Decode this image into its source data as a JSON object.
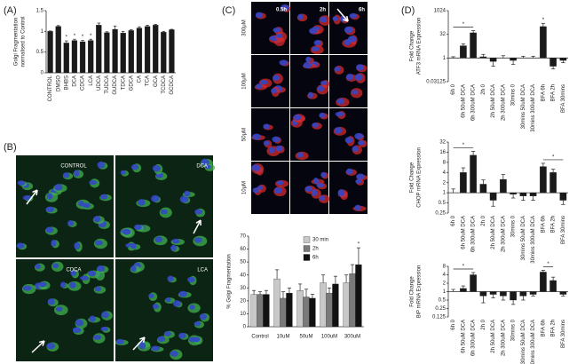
{
  "panel_labels": [
    "(A)",
    "(B)",
    "(C)",
    "(D)"
  ],
  "micrographs_b": {
    "labels": [
      "CONTROL",
      "DCA",
      "CDCA",
      "LCA"
    ]
  },
  "micrographs_c": {
    "columns": [
      "0.5h",
      "2h",
      "6h"
    ],
    "rows": [
      "300μM",
      "100μM",
      "50μM",
      "10μM"
    ]
  },
  "chart_data": [
    {
      "type": "bar",
      "y_label": [
        "Golgi Fragmentation",
        "normalised to Control"
      ],
      "categories": [
        "CONTROL",
        "DMSO",
        "BHBS",
        "DCA",
        "CDCA",
        "LCA",
        "UDCA",
        "TUDCA",
        "GUDCA",
        "TDCA",
        "GDCA",
        "CA",
        "TCA",
        "GCA",
        "TCDCA",
        "GCDCA"
      ],
      "values": [
        1.0,
        1.12,
        0.72,
        0.78,
        0.75,
        0.78,
        1.15,
        0.97,
        1.05,
        0.96,
        1.02,
        1.08,
        1.12,
        1.15,
        0.98,
        1.04
      ],
      "errors": [
        0.01,
        0.02,
        0.05,
        0.03,
        0.03,
        0.03,
        0.05,
        0.02,
        0.08,
        0.04,
        0.02,
        0.03,
        0.03,
        0.02,
        0.02,
        0.01
      ],
      "color": "#1a1a1a",
      "ylim": [
        0,
        1.5
      ],
      "yticks": [
        0,
        0.5,
        1,
        1.5
      ],
      "annotations": [
        {
          "text": "*",
          "category": "BHBS"
        },
        {
          "text": "*",
          "category": "DCA"
        },
        {
          "text": "*",
          "category": "CDCA"
        },
        {
          "text": "*",
          "category": "LCA"
        }
      ]
    },
    {
      "type": "bar",
      "y_label": [
        "% Golgi Fragmentation"
      ],
      "categories": [
        "Control",
        "10uM",
        "50uM",
        "100uM",
        "300uM"
      ],
      "series": [
        {
          "name": "30 min",
          "color": "#c8c8c8",
          "values": [
            25,
            37,
            28,
            34,
            34
          ],
          "errors": [
            3,
            7,
            5,
            6,
            6
          ]
        },
        {
          "name": "2h",
          "color": "#7a7a7a",
          "values": [
            25,
            22,
            23,
            26,
            41
          ],
          "errors": [
            2,
            5,
            6,
            4,
            7
          ]
        },
        {
          "name": "6h",
          "color": "#111111",
          "values": [
            25,
            26,
            22,
            33,
            48
          ],
          "errors": [
            3,
            4,
            3,
            6,
            13
          ]
        }
      ],
      "ylim": [
        0,
        70
      ],
      "yticks": [
        0,
        10,
        20,
        30,
        40,
        50,
        60,
        70
      ],
      "legend": "upper right",
      "annotations": [
        {
          "text": "*",
          "category": "300uM",
          "series": "6h"
        }
      ]
    },
    {
      "type": "bar",
      "log_scale": true,
      "y_label": [
        "Fold Change",
        "ATF3 mRNA Expression"
      ],
      "categories": [
        "6h 0",
        "6h 50uM DCA",
        "6h 300uM DCA",
        "2h 0",
        "2h 50uM DCA",
        "2h 300uM DCA",
        "30mins 0",
        "30mins 50uM DCA",
        "30mins 300uM DCA",
        "BFA 6h",
        "BFA 2h",
        "BFA 30mins"
      ],
      "values": [
        1,
        6,
        40,
        1.2,
        0.6,
        1,
        0.7,
        1,
        1,
        100,
        0.3,
        0.7
      ],
      "errors": [
        0.2,
        2,
        15,
        0.5,
        0.3,
        0.4,
        0.3,
        0.3,
        0.3,
        60,
        0.1,
        0.2
      ],
      "color": "#1a1a1a",
      "ylim": [
        0.03125,
        1024
      ],
      "yticks": [
        0.03125,
        1,
        32,
        1024
      ],
      "annotations": [
        {
          "text": "*",
          "from": "6h 0",
          "to": "6h 300uM DCA"
        },
        {
          "text": "*",
          "category": "BFA 6h"
        }
      ]
    },
    {
      "type": "bar",
      "log_scale": true,
      "y_label": [
        "Fold Change",
        "CHOP mRNA Expression"
      ],
      "categories": [
        "6h 0",
        "6h 50uM DCA",
        "6h 300uM DCA",
        "2h 0",
        "2h 50uM DCA",
        "2h 300uM DCA",
        "30mins 0",
        "30mins 50uM DCA",
        "30mins 300uM DCA",
        "BFA 6h",
        "BFA 2h",
        "BFA 30mins"
      ],
      "values": [
        1,
        4,
        13,
        1.8,
        0.6,
        2.5,
        0.9,
        0.8,
        0.8,
        6,
        4,
        0.6
      ],
      "errors": [
        0.3,
        1.5,
        4,
        0.6,
        0.2,
        1,
        0.2,
        0.2,
        0.2,
        1.5,
        1,
        0.15
      ],
      "color": "#1a1a1a",
      "ylim": [
        0.25,
        32
      ],
      "yticks": [
        0.25,
        0.5,
        1,
        2,
        4,
        8,
        16,
        32
      ],
      "annotations": [
        {
          "text": "*",
          "from": "6h 0",
          "to": "6h 300uM DCA"
        },
        {
          "text": "*",
          "from": "BFA 6h",
          "to": "BFA 30mins"
        }
      ]
    },
    {
      "type": "bar",
      "log_scale": true,
      "y_label": [
        "Fold Change",
        "BiP mRNA Expression"
      ],
      "categories": [
        "6h 0",
        "6h 50uM DCA",
        "6h 300uM DCA",
        "2h 0",
        "2h 50uM DCA",
        "2h 300uM DCA",
        "30mins 0",
        "30mins 50uM DCA",
        "30mins 300uM DCA",
        "BFA 6h",
        "BFA 2h",
        "BFA 30mins"
      ],
      "values": [
        1,
        1.3,
        4,
        0.7,
        0.8,
        0.7,
        0.5,
        0.7,
        0.8,
        5,
        2.5,
        0.8
      ],
      "errors": [
        0.2,
        0.3,
        0.8,
        0.3,
        0.2,
        0.2,
        0.15,
        0.2,
        0.1,
        0.8,
        0.8,
        0.1
      ],
      "color": "#1a1a1a",
      "ylim": [
        0.125,
        8
      ],
      "yticks": [
        0.125,
        0.25,
        0.5,
        1,
        2,
        4,
        8
      ],
      "annotations": [
        {
          "text": "*",
          "from": "6h 0",
          "to": "6h 300uM DCA"
        },
        {
          "text": "*",
          "from": "BFA 6h",
          "to": "BFA 2h"
        }
      ]
    }
  ]
}
